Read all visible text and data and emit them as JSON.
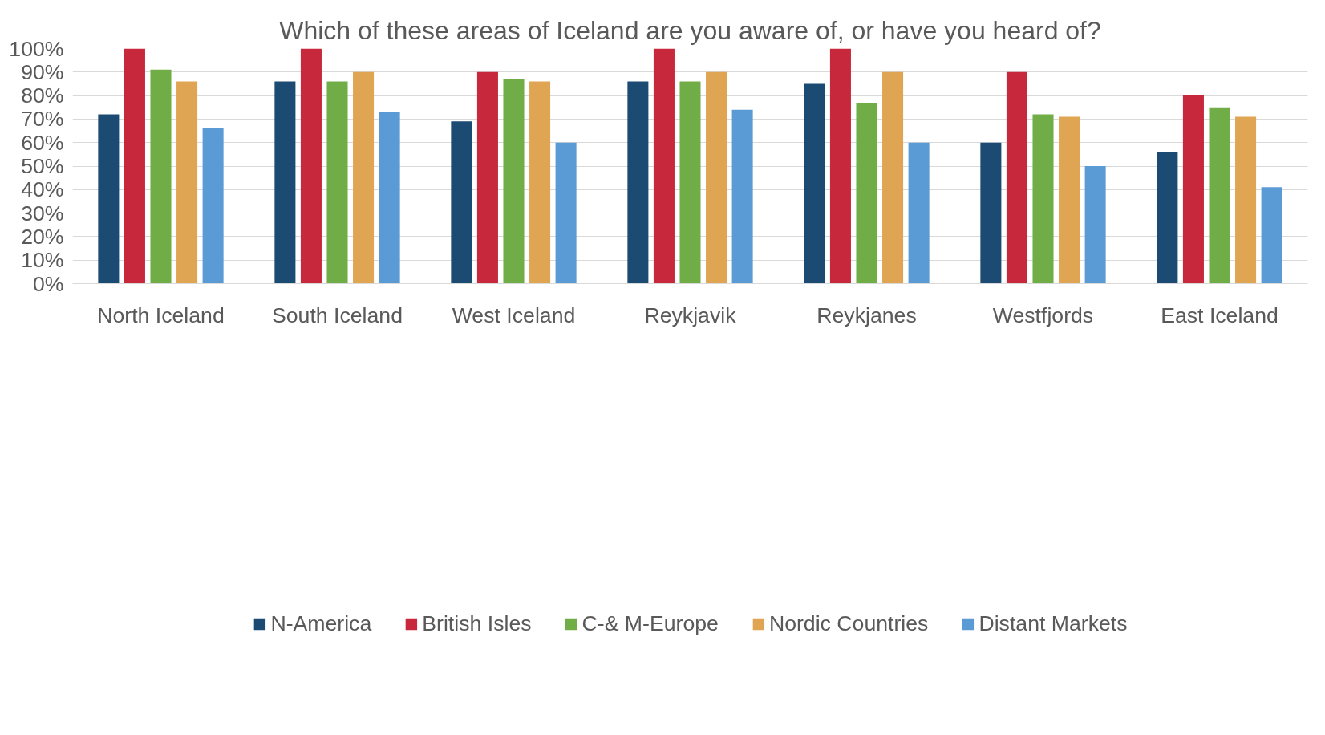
{
  "chart_data": {
    "type": "bar",
    "title": "Which of these areas of Iceland are you aware of, or have you heard of?",
    "categories": [
      "North Iceland",
      "South Iceland",
      "West Iceland",
      "Reykjavik",
      "Reykjanes",
      "Westfjords",
      "East Iceland"
    ],
    "series": [
      {
        "name": "N-America",
        "color": "#1b4a72",
        "values": [
          72,
          86,
          69,
          86,
          85,
          60,
          56
        ]
      },
      {
        "name": "British Isles",
        "color": "#c8283c",
        "values": [
          100,
          100,
          90,
          100,
          100,
          90,
          80
        ]
      },
      {
        "name": "C-& M-Europe",
        "color": "#70ad47",
        "values": [
          91,
          86,
          87,
          86,
          77,
          72,
          75
        ]
      },
      {
        "name": "Nordic Countries",
        "color": "#e0a553",
        "values": [
          86,
          90,
          86,
          90,
          90,
          71,
          71
        ]
      },
      {
        "name": "Distant Markets",
        "color": "#5b9bd5",
        "values": [
          66,
          73,
          60,
          74,
          60,
          50,
          41
        ]
      }
    ],
    "ylim": [
      0,
      100
    ],
    "yticks": [
      {
        "value": 0,
        "label": "0%"
      },
      {
        "value": 10,
        "label": "10%"
      },
      {
        "value": 20,
        "label": "20%"
      },
      {
        "value": 30,
        "label": "30%"
      },
      {
        "value": 40,
        "label": "40%"
      },
      {
        "value": 50,
        "label": "50%"
      },
      {
        "value": 60,
        "label": "60%"
      },
      {
        "value": 70,
        "label": "70%"
      },
      {
        "value": 80,
        "label": "80%"
      },
      {
        "value": 90,
        "label": "90%"
      },
      {
        "value": 100,
        "label": "100%"
      }
    ],
    "grid": "y",
    "legend": "bottom"
  }
}
